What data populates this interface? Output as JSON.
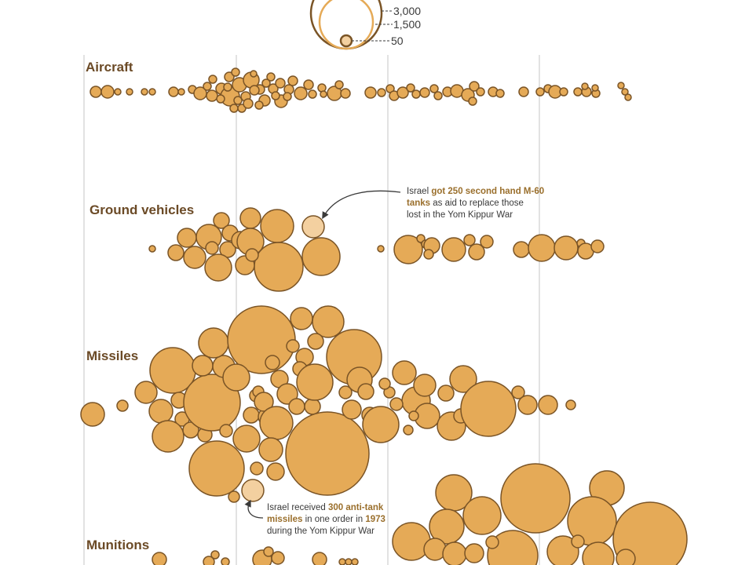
{
  "colors": {
    "bubble_fill": "#e5aa57",
    "bubble_stroke": "#7a5426",
    "highlight_fill": "#f3d0a0",
    "label": "#6b4a26",
    "annotation_highlight": "#9a6f2c",
    "legend_outer": "#7a5426",
    "legend_mid": "#e5aa57"
  },
  "legend": {
    "labels": [
      "3,000",
      "1,500",
      "50"
    ],
    "values": [
      3000,
      1500,
      50
    ]
  },
  "chart_data": {
    "type": "bubble-swarm",
    "size_measure": "quantity",
    "grid": true,
    "categories": [
      "Aircraft",
      "Ground vehicles",
      "Missiles",
      "Munitions"
    ],
    "annotations": [
      {
        "category": "Ground vehicles",
        "quantity": 250,
        "parts": [
          {
            "t": "Israel ",
            "hl": false
          },
          {
            "t": "got ",
            "hl": true
          },
          {
            "t": "250 second hand M-60",
            "hl": true
          },
          {
            "t": "tanks",
            "hl": true,
            "br": true
          },
          {
            "t": " as aid to replace those",
            "hl": false
          },
          {
            "t": "lost in the Yom Kippur War",
            "hl": false,
            "br": true
          }
        ]
      },
      {
        "category": "Missiles",
        "quantity": 300,
        "parts": [
          {
            "t": "Israel received ",
            "hl": false
          },
          {
            "t": "300 anti-tank",
            "hl": true
          },
          {
            "t": "missiles",
            "hl": true,
            "br": true
          },
          {
            "t": " in one order in ",
            "hl": false
          },
          {
            "t": "1973",
            "hl": true
          },
          {
            "t": "during the Yom Kippur War",
            "hl": false,
            "br": true
          }
        ]
      }
    ]
  }
}
